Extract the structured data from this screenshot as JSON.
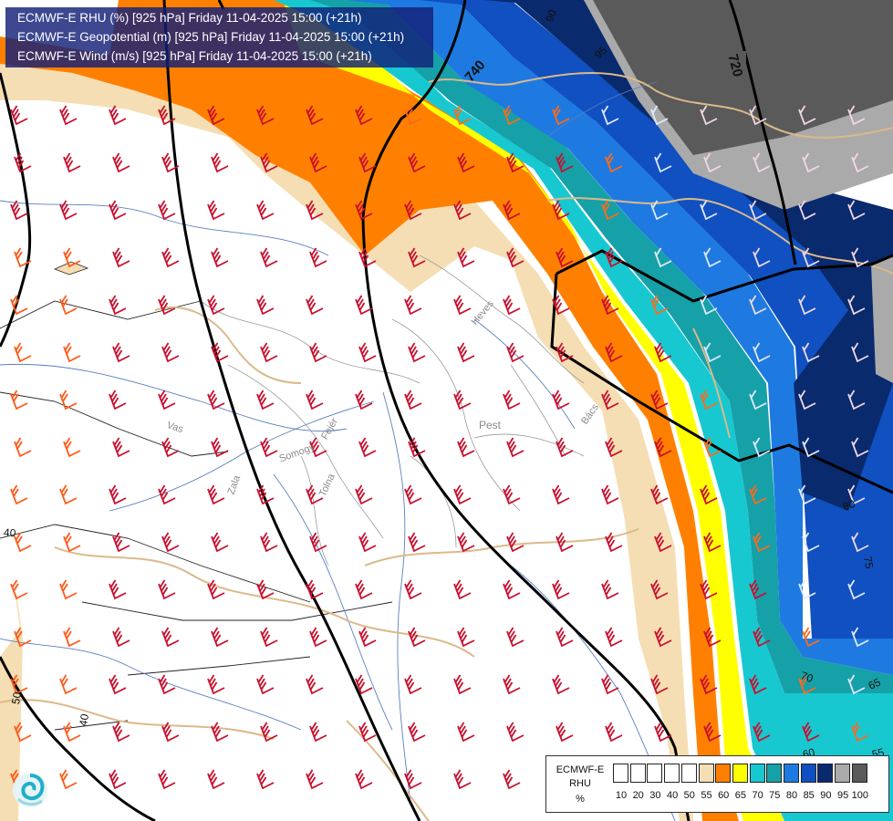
{
  "title": {
    "line1": "ECMWF-E RHU (%) [925 hPa] Friday 11-04-2025 15:00 (+21h)",
    "line2": "ECMWF-E Geopotential (m) [925 hPa] Friday 11-04-2025 15:00 (+21h)",
    "line3": "ECMWF-E Wind (m/s) [925 hPa] Friday 11-04-2025 15:00 (+21h)"
  },
  "legend": {
    "model": "ECMWF-E",
    "field": "RHU",
    "unit": "%",
    "ticks": [
      "10",
      "20",
      "30",
      "40",
      "50",
      "55",
      "60",
      "65",
      "70",
      "75",
      "80",
      "85",
      "90",
      "95",
      "100"
    ],
    "colors": [
      "#ffffff",
      "#ffffff",
      "#ffffff",
      "#ffffff",
      "#ffffff",
      "#f5deb3",
      "#ff8000",
      "#ffff00",
      "#18c8d0",
      "#16a0a8",
      "#1e7ae0",
      "#1050c0",
      "#0a2a6e",
      "#aaaaaa",
      "#5a5a5a"
    ]
  },
  "map": {
    "regions": [
      {
        "name": "Heves",
        "rotate": -50
      },
      {
        "name": "Pest",
        "rotate": 0
      },
      {
        "name": "Bács",
        "rotate": -55
      },
      {
        "name": "Vas",
        "rotate": 18
      },
      {
        "name": "Somogy",
        "rotate": -20
      },
      {
        "name": "Fejér",
        "rotate": -60
      },
      {
        "name": "Tolna",
        "rotate": -65
      },
      {
        "name": "Zala",
        "rotate": -70
      }
    ],
    "geopotential_labels": [
      {
        "text": "740",
        "rotate": -50
      },
      {
        "text": "720",
        "rotate": 75
      }
    ],
    "rhu_labels": [
      {
        "text": "90",
        "rotate": -70
      },
      {
        "text": "95",
        "rotate": -40
      },
      {
        "text": "80",
        "rotate": -20
      },
      {
        "text": "75",
        "rotate": 80
      },
      {
        "text": "70",
        "rotate": 20
      },
      {
        "text": "65",
        "rotate": -25
      },
      {
        "text": "60",
        "rotate": -15
      },
      {
        "text": "55",
        "rotate": -15
      },
      {
        "text": "50",
        "rotate": -80
      },
      {
        "text": "40",
        "rotate": 5
      },
      {
        "text": "40",
        "rotate": -80
      }
    ]
  }
}
